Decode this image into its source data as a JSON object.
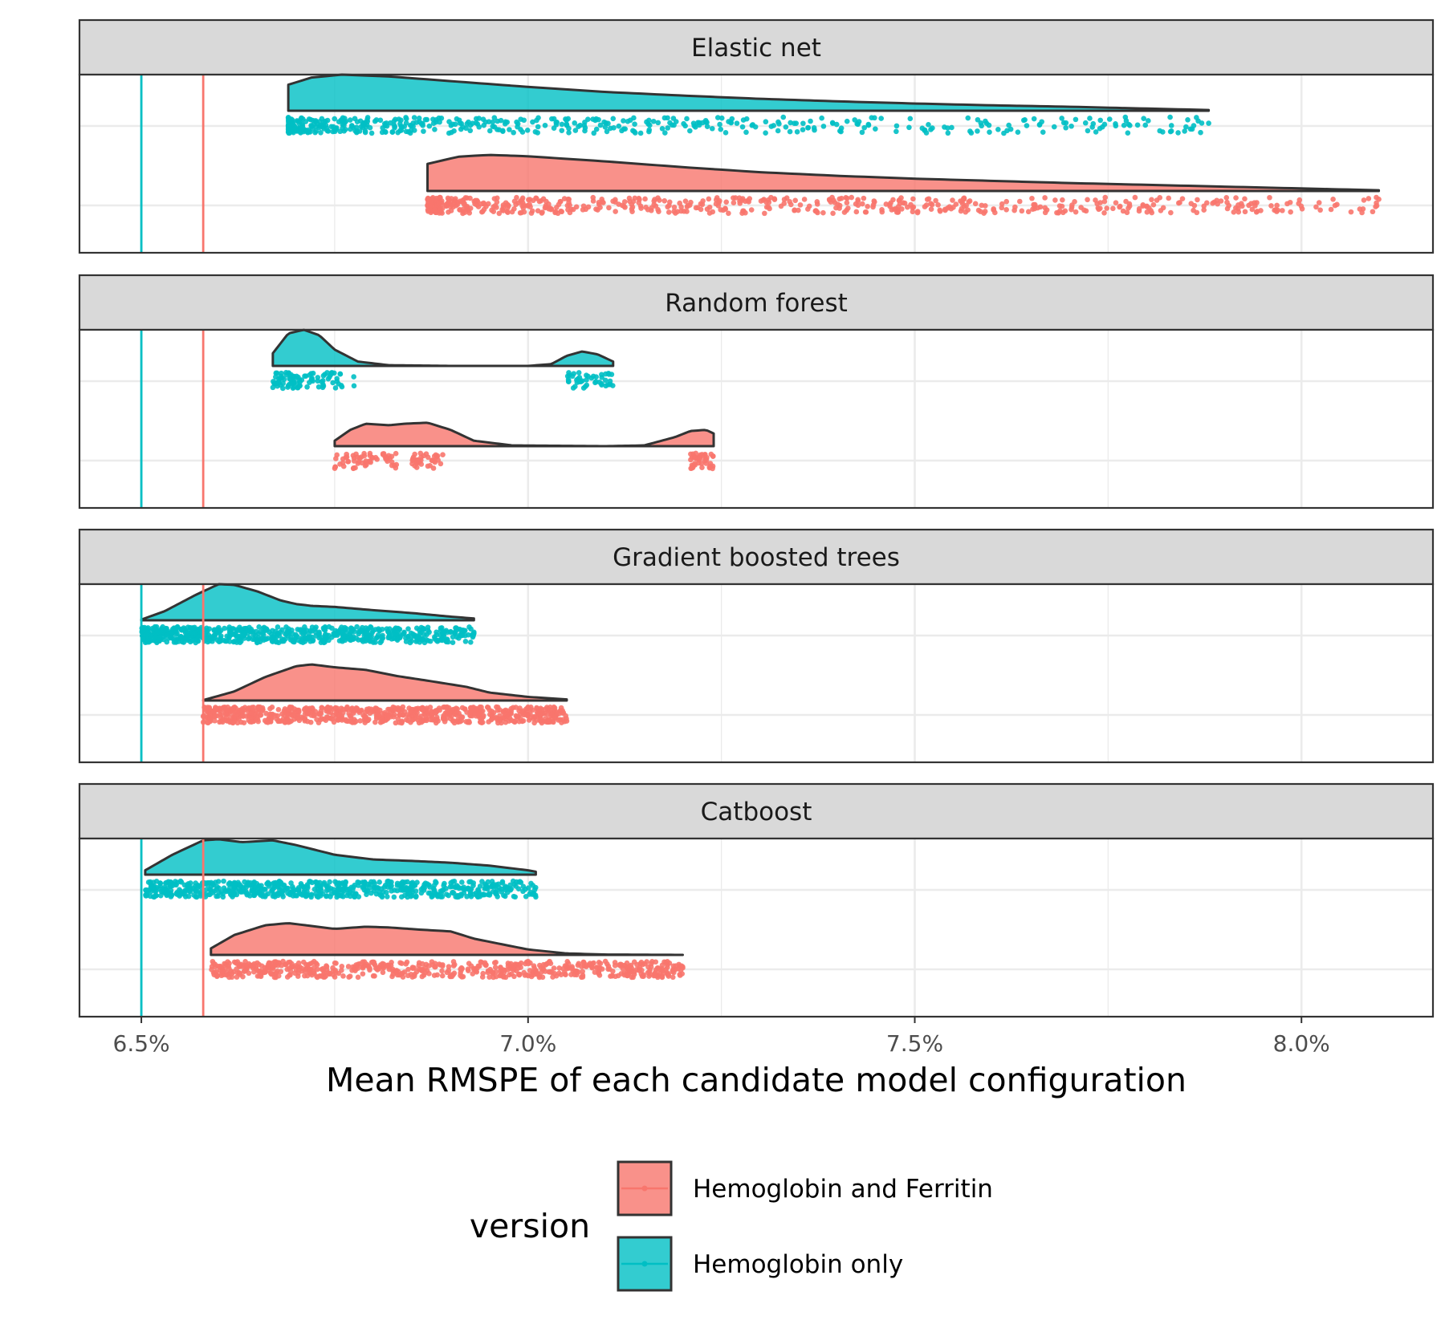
{
  "chart_data": {
    "type": "raincloud",
    "xlabel": "Mean RMSPE of each candidate model configuration",
    "xlim": [
      6.42,
      8.17
    ],
    "x_ticks": [
      6.5,
      7.0,
      7.5,
      8.0
    ],
    "x_tick_labels": [
      "6.5%",
      "7.0%",
      "7.5%",
      "8.0%"
    ],
    "legend": {
      "title": "version",
      "placement": "bottom",
      "entries": [
        {
          "name": "Hemoglobin and Ferritin",
          "color": "#F8766D"
        },
        {
          "name": "Hemoglobin only",
          "color": "#00BFC4"
        }
      ]
    },
    "reference_lines": [
      {
        "series": "Hemoglobin only",
        "x": 6.5,
        "color": "#00BFC4"
      },
      {
        "series": "Hemoglobin and Ferritin",
        "x": 6.58,
        "color": "#F8766D"
      }
    ],
    "panels": [
      {
        "title": "Elastic net",
        "series": [
          {
            "name": "Hemoglobin only",
            "color": "#00BFC4",
            "min": 6.69,
            "max": 7.88,
            "density": [
              [
                6.69,
                0.72
              ],
              [
                6.72,
                0.92
              ],
              [
                6.76,
                1.0
              ],
              [
                6.82,
                0.95
              ],
              [
                6.9,
                0.82
              ],
              [
                7.0,
                0.66
              ],
              [
                7.1,
                0.52
              ],
              [
                7.2,
                0.42
              ],
              [
                7.3,
                0.33
              ],
              [
                7.4,
                0.26
              ],
              [
                7.5,
                0.2
              ],
              [
                7.6,
                0.15
              ],
              [
                7.7,
                0.11
              ],
              [
                7.8,
                0.06
              ],
              [
                7.88,
                0.02
              ]
            ],
            "points": {
              "n": 520,
              "skew": 2.2,
              "seed": 11
            }
          },
          {
            "name": "Hemoglobin and Ferritin",
            "color": "#F8766D",
            "min": 6.87,
            "max": 8.1,
            "density": [
              [
                6.87,
                0.75
              ],
              [
                6.91,
                0.95
              ],
              [
                6.95,
                1.0
              ],
              [
                7.0,
                0.96
              ],
              [
                7.1,
                0.82
              ],
              [
                7.2,
                0.66
              ],
              [
                7.3,
                0.52
              ],
              [
                7.4,
                0.42
              ],
              [
                7.5,
                0.34
              ],
              [
                7.6,
                0.28
              ],
              [
                7.7,
                0.22
              ],
              [
                7.8,
                0.17
              ],
              [
                7.9,
                0.12
              ],
              [
                8.0,
                0.07
              ],
              [
                8.1,
                0.02
              ]
            ],
            "points": {
              "n": 620,
              "skew": 1.7,
              "seed": 23
            }
          }
        ]
      },
      {
        "title": "Random forest",
        "series": [
          {
            "name": "Hemoglobin only",
            "color": "#00BFC4",
            "min": 6.67,
            "max": 7.11,
            "density": [
              [
                6.67,
                0.35
              ],
              [
                6.69,
                0.9
              ],
              [
                6.71,
                1.0
              ],
              [
                6.73,
                0.85
              ],
              [
                6.75,
                0.45
              ],
              [
                6.78,
                0.12
              ],
              [
                6.82,
                0.02
              ],
              [
                6.9,
                0.0
              ],
              [
                7.0,
                0.0
              ],
              [
                7.03,
                0.05
              ],
              [
                7.05,
                0.28
              ],
              [
                7.07,
                0.4
              ],
              [
                7.09,
                0.32
              ],
              [
                7.11,
                0.12
              ]
            ],
            "points": {
              "clusters": [
                [
                  6.67,
                  6.76,
                  90
                ],
                [
                  6.77,
                  6.78,
                  2
                ],
                [
                  7.05,
                  7.11,
                  45
                ]
              ],
              "seed": 37
            }
          },
          {
            "name": "Hemoglobin and Ferritin",
            "color": "#F8766D",
            "min": 6.75,
            "max": 7.24,
            "density": [
              [
                6.75,
                0.15
              ],
              [
                6.77,
                0.45
              ],
              [
                6.79,
                0.62
              ],
              [
                6.82,
                0.58
              ],
              [
                6.84,
                0.62
              ],
              [
                6.87,
                0.65
              ],
              [
                6.9,
                0.45
              ],
              [
                6.93,
                0.15
              ],
              [
                6.98,
                0.02
              ],
              [
                7.1,
                0.0
              ],
              [
                7.15,
                0.02
              ],
              [
                7.19,
                0.25
              ],
              [
                7.21,
                0.42
              ],
              [
                7.23,
                0.45
              ],
              [
                7.24,
                0.35
              ]
            ],
            "points": {
              "clusters": [
                [
                  6.75,
                  6.83,
                  60
                ],
                [
                  6.85,
                  6.89,
                  35
                ],
                [
                  7.21,
                  7.24,
                  45
                ]
              ],
              "seed": 41
            }
          }
        ]
      },
      {
        "title": "Gradient boosted trees",
        "series": [
          {
            "name": "Hemoglobin only",
            "color": "#00BFC4",
            "min": 6.5,
            "max": 6.93,
            "density": [
              [
                6.5,
                0.02
              ],
              [
                6.53,
                0.25
              ],
              [
                6.57,
                0.7
              ],
              [
                6.6,
                1.0
              ],
              [
                6.62,
                0.98
              ],
              [
                6.65,
                0.8
              ],
              [
                6.68,
                0.55
              ],
              [
                6.7,
                0.45
              ],
              [
                6.72,
                0.4
              ],
              [
                6.75,
                0.37
              ],
              [
                6.8,
                0.28
              ],
              [
                6.85,
                0.2
              ],
              [
                6.9,
                0.1
              ],
              [
                6.93,
                0.05
              ]
            ],
            "points": {
              "n": 700,
              "skew": 1.3,
              "seed": 53
            }
          },
          {
            "name": "Hemoglobin and Ferritin",
            "color": "#F8766D",
            "min": 6.58,
            "max": 7.05,
            "density": [
              [
                6.58,
                0.01
              ],
              [
                6.62,
                0.25
              ],
              [
                6.66,
                0.65
              ],
              [
                6.7,
                0.95
              ],
              [
                6.72,
                1.0
              ],
              [
                6.75,
                0.92
              ],
              [
                6.79,
                0.85
              ],
              [
                6.83,
                0.68
              ],
              [
                6.87,
                0.55
              ],
              [
                6.92,
                0.38
              ],
              [
                6.95,
                0.22
              ],
              [
                7.0,
                0.1
              ],
              [
                7.05,
                0.03
              ]
            ],
            "points": {
              "n": 760,
              "skew": 1.05,
              "seed": 67
            }
          }
        ]
      },
      {
        "title": "Catboost",
        "series": [
          {
            "name": "Hemoglobin only",
            "color": "#00BFC4",
            "min": 6.505,
            "max": 7.01,
            "density": [
              [
                6.505,
                0.12
              ],
              [
                6.54,
                0.55
              ],
              [
                6.58,
                0.95
              ],
              [
                6.6,
                0.98
              ],
              [
                6.63,
                0.9
              ],
              [
                6.67,
                0.95
              ],
              [
                6.7,
                0.82
              ],
              [
                6.75,
                0.55
              ],
              [
                6.8,
                0.42
              ],
              [
                6.85,
                0.38
              ],
              [
                6.9,
                0.33
              ],
              [
                6.95,
                0.25
              ],
              [
                7.0,
                0.12
              ],
              [
                7.01,
                0.08
              ]
            ],
            "points": {
              "n": 660,
              "skew": 1.15,
              "seed": 79
            }
          },
          {
            "name": "Hemoglobin and Ferritin",
            "color": "#F8766D",
            "min": 6.59,
            "max": 7.2,
            "density": [
              [
                6.59,
                0.18
              ],
              [
                6.62,
                0.55
              ],
              [
                6.66,
                0.82
              ],
              [
                6.69,
                0.88
              ],
              [
                6.72,
                0.8
              ],
              [
                6.75,
                0.72
              ],
              [
                6.79,
                0.78
              ],
              [
                6.82,
                0.76
              ],
              [
                6.86,
                0.7
              ],
              [
                6.9,
                0.65
              ],
              [
                6.93,
                0.45
              ],
              [
                6.96,
                0.32
              ],
              [
                7.0,
                0.15
              ],
              [
                7.05,
                0.04
              ],
              [
                7.1,
                0.01
              ],
              [
                7.2,
                0.0
              ]
            ],
            "points": {
              "n": 640,
              "skew": 1.1,
              "seed": 97
            }
          }
        ]
      }
    ]
  }
}
